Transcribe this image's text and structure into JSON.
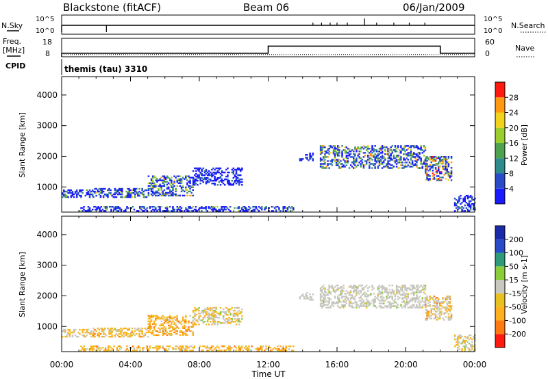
{
  "header": {
    "station": "Blackstone (fitACF)",
    "beam": "Beam 06",
    "date": "06/Jan/2009"
  },
  "noise_panel": {
    "left_label": "N.Sky",
    "right_label": "N.Search",
    "ticks": [
      "10^5",
      "10^0"
    ]
  },
  "freq_panel": {
    "left_label_1": "Freq.",
    "left_label_2": "[MHz]",
    "left_ticks": [
      "18",
      "8"
    ],
    "right_label": "Nave",
    "right_ticks": [
      "60",
      "0"
    ]
  },
  "cpid": {
    "label": "CPID",
    "text": "themis (tau) 3310"
  },
  "axes": {
    "ylabel": "Slant Range [km]",
    "yticks": [
      1000,
      2000,
      3000,
      4000
    ],
    "xlabel": "Time UT",
    "xticks": [
      "00:00",
      "04:00",
      "08:00",
      "12:00",
      "16:00",
      "20:00",
      "00:00"
    ]
  },
  "power_scale": {
    "label": "Power [dB]",
    "ticks": [
      "4",
      "8",
      "12",
      "16",
      "20",
      "24",
      "28"
    ],
    "colors": [
      "#1a1aff",
      "#2a4bc8",
      "#2f8a8a",
      "#4ea14e",
      "#9ccd2e",
      "#f2d21a",
      "#ff9a10",
      "#ff1a10"
    ]
  },
  "velocity_scale": {
    "label": "Velocity [m s-1]",
    "ticks": [
      "-200",
      "-100",
      "-50",
      "-15",
      "15",
      "50",
      "100",
      "200"
    ],
    "colors": [
      "#ff1a10",
      "#ff7a10",
      "#ffb020",
      "#e8c020",
      "#c8c8c0",
      "#8ccc3a",
      "#2e9a7a",
      "#2a4bc8",
      "#1a2aa8"
    ]
  },
  "chart_data": {
    "type": "heatmap",
    "x_range_hours": [
      0,
      24
    ],
    "y_range_km": [
      180,
      4600
    ],
    "frequency_mhz": [
      {
        "start": 0,
        "end": 12,
        "value": 10
      },
      {
        "start": 12,
        "end": 22,
        "value": 14
      },
      {
        "start": 22,
        "end": 24,
        "value": 10
      }
    ],
    "noise_spikes_hours": [
      14.6,
      15.1,
      15.6,
      16.0,
      16.6,
      17.6,
      18.3,
      19.3,
      20.2,
      21.1
    ],
    "power_regions": [
      {
        "t": [
          0.0,
          1.8
        ],
        "r": [
          650,
          900
        ],
        "mix": [
          0.6,
          0.2,
          0.1,
          0.05,
          0.05,
          0,
          0,
          0
        ]
      },
      {
        "t": [
          1.8,
          5.0
        ],
        "r": [
          650,
          950
        ],
        "mix": [
          0.5,
          0.2,
          0.1,
          0.1,
          0.05,
          0.05,
          0,
          0
        ]
      },
      {
        "t": [
          5.0,
          7.6
        ],
        "r": [
          700,
          1350
        ],
        "mix": [
          0.35,
          0.2,
          0.15,
          0.1,
          0.1,
          0.05,
          0.05,
          0
        ]
      },
      {
        "t": [
          7.6,
          10.5
        ],
        "r": [
          1050,
          1600
        ],
        "mix": [
          0.7,
          0.2,
          0.1,
          0,
          0,
          0,
          0,
          0
        ]
      },
      {
        "t": [
          1.0,
          13.5
        ],
        "r": [
          200,
          380
        ],
        "mix": [
          0.6,
          0.2,
          0.1,
          0.05,
          0.05,
          0,
          0,
          0
        ]
      },
      {
        "t": [
          13.8,
          14.6
        ],
        "r": [
          1850,
          2100
        ],
        "mix": [
          0.7,
          0.2,
          0.1,
          0,
          0,
          0,
          0,
          0
        ]
      },
      {
        "t": [
          15.0,
          21.1
        ],
        "r": [
          1600,
          2350
        ],
        "mix": [
          0.35,
          0.2,
          0.15,
          0.1,
          0.1,
          0.05,
          0.05,
          0
        ]
      },
      {
        "t": [
          21.1,
          22.6
        ],
        "r": [
          1200,
          2000
        ],
        "mix": [
          0.3,
          0.15,
          0.1,
          0.1,
          0.1,
          0.1,
          0.1,
          0.05
        ]
      },
      {
        "t": [
          22.8,
          24.0
        ],
        "r": [
          200,
          700
        ],
        "mix": [
          0.6,
          0.2,
          0.1,
          0.1,
          0,
          0,
          0,
          0
        ]
      }
    ],
    "velocity_regions": [
      {
        "t": [
          0.0,
          1.8
        ],
        "r": [
          650,
          900
        ],
        "mix": [
          0,
          0,
          0.3,
          0.2,
          0.5,
          0,
          0,
          0,
          0
        ]
      },
      {
        "t": [
          1.8,
          5.0
        ],
        "r": [
          650,
          950
        ],
        "mix": [
          0,
          0.05,
          0.4,
          0.3,
          0.25,
          0,
          0,
          0,
          0
        ]
      },
      {
        "t": [
          5.0,
          7.6
        ],
        "r": [
          700,
          1350
        ],
        "mix": [
          0,
          0.15,
          0.45,
          0.3,
          0.1,
          0,
          0,
          0,
          0
        ]
      },
      {
        "t": [
          7.6,
          10.5
        ],
        "r": [
          1050,
          1600
        ],
        "mix": [
          0,
          0,
          0.2,
          0.2,
          0.5,
          0.1,
          0,
          0,
          0
        ]
      },
      {
        "t": [
          1.0,
          13.5
        ],
        "r": [
          200,
          380
        ],
        "mix": [
          0,
          0.1,
          0.5,
          0.3,
          0.1,
          0,
          0,
          0,
          0
        ]
      },
      {
        "t": [
          13.8,
          14.6
        ],
        "r": [
          1850,
          2100
        ],
        "mix": [
          0,
          0,
          0,
          0,
          1,
          0,
          0,
          0,
          0
        ]
      },
      {
        "t": [
          15.0,
          21.1
        ],
        "r": [
          1600,
          2350
        ],
        "mix": [
          0,
          0,
          0,
          0.05,
          0.9,
          0.05,
          0,
          0,
          0
        ]
      },
      {
        "t": [
          21.1,
          22.6
        ],
        "r": [
          1200,
          2000
        ],
        "mix": [
          0,
          0.05,
          0.2,
          0.15,
          0.6,
          0,
          0,
          0,
          0
        ]
      },
      {
        "t": [
          22.8,
          24.0
        ],
        "r": [
          200,
          700
        ],
        "mix": [
          0,
          0,
          0.2,
          0.2,
          0.5,
          0.1,
          0,
          0,
          0
        ]
      }
    ]
  }
}
